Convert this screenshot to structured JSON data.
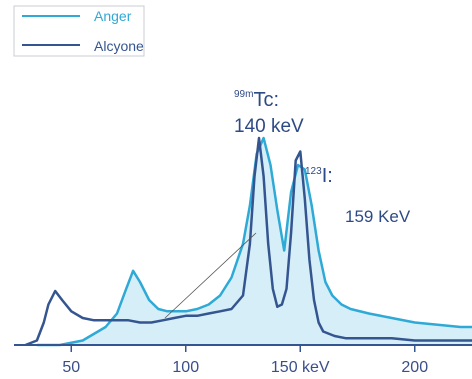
{
  "chart_data": {
    "type": "line",
    "xlabel": "",
    "ylabel": "",
    "xlim": [
      25,
      225
    ],
    "ylim": [
      0,
      1.0
    ],
    "grid": false,
    "legend_position": "top-left",
    "x_ticks": [
      {
        "value": 50,
        "label": "50"
      },
      {
        "value": 100,
        "label": "100"
      },
      {
        "value": 150,
        "label": "150 keV"
      },
      {
        "value": 200,
        "label": "200"
      }
    ],
    "series": [
      {
        "name": "Anger",
        "color": "#2fa9d6",
        "fill": "#d6eef8",
        "x": [
          35,
          45,
          55,
          65,
          70,
          74,
          77,
          80,
          84,
          88,
          92,
          96,
          100,
          105,
          110,
          115,
          120,
          125,
          128,
          131,
          134,
          137,
          140,
          143,
          146,
          149,
          152,
          155,
          158,
          161,
          164,
          168,
          172,
          180,
          190,
          200,
          210,
          220,
          225
        ],
        "y": [
          0.0,
          0.0,
          0.02,
          0.08,
          0.14,
          0.25,
          0.33,
          0.28,
          0.2,
          0.16,
          0.15,
          0.15,
          0.15,
          0.16,
          0.18,
          0.22,
          0.3,
          0.45,
          0.62,
          0.85,
          0.92,
          0.8,
          0.6,
          0.42,
          0.68,
          0.8,
          0.78,
          0.62,
          0.42,
          0.28,
          0.22,
          0.18,
          0.16,
          0.14,
          0.12,
          0.1,
          0.09,
          0.08,
          0.08
        ]
      },
      {
        "name": "Alcyone",
        "color": "#34558f",
        "x": [
          30,
          35,
          38,
          40,
          43,
          46,
          50,
          55,
          60,
          65,
          70,
          75,
          80,
          85,
          90,
          95,
          100,
          105,
          110,
          115,
          120,
          125,
          128,
          130,
          132,
          134,
          136,
          138,
          140,
          142,
          144,
          146,
          148,
          150,
          152,
          154,
          156,
          158,
          160,
          165,
          170,
          180,
          190,
          200,
          210,
          220,
          225
        ],
        "y": [
          0.0,
          0.02,
          0.1,
          0.18,
          0.24,
          0.2,
          0.15,
          0.12,
          0.11,
          0.11,
          0.11,
          0.11,
          0.1,
          0.1,
          0.11,
          0.12,
          0.13,
          0.13,
          0.14,
          0.15,
          0.16,
          0.22,
          0.45,
          0.75,
          0.92,
          0.75,
          0.45,
          0.25,
          0.17,
          0.18,
          0.25,
          0.5,
          0.82,
          0.86,
          0.65,
          0.38,
          0.2,
          0.1,
          0.06,
          0.04,
          0.03,
          0.03,
          0.03,
          0.02,
          0.02,
          0.02,
          0.02
        ]
      }
    ],
    "annotations": [
      {
        "id": "tc",
        "super": "99m",
        "text": "Tc:",
        "energy": "140 keV",
        "peak_x": 134
      },
      {
        "id": "i",
        "super": "123",
        "text": "I:",
        "energy": "159 KeV",
        "peak_x": 150
      }
    ]
  }
}
